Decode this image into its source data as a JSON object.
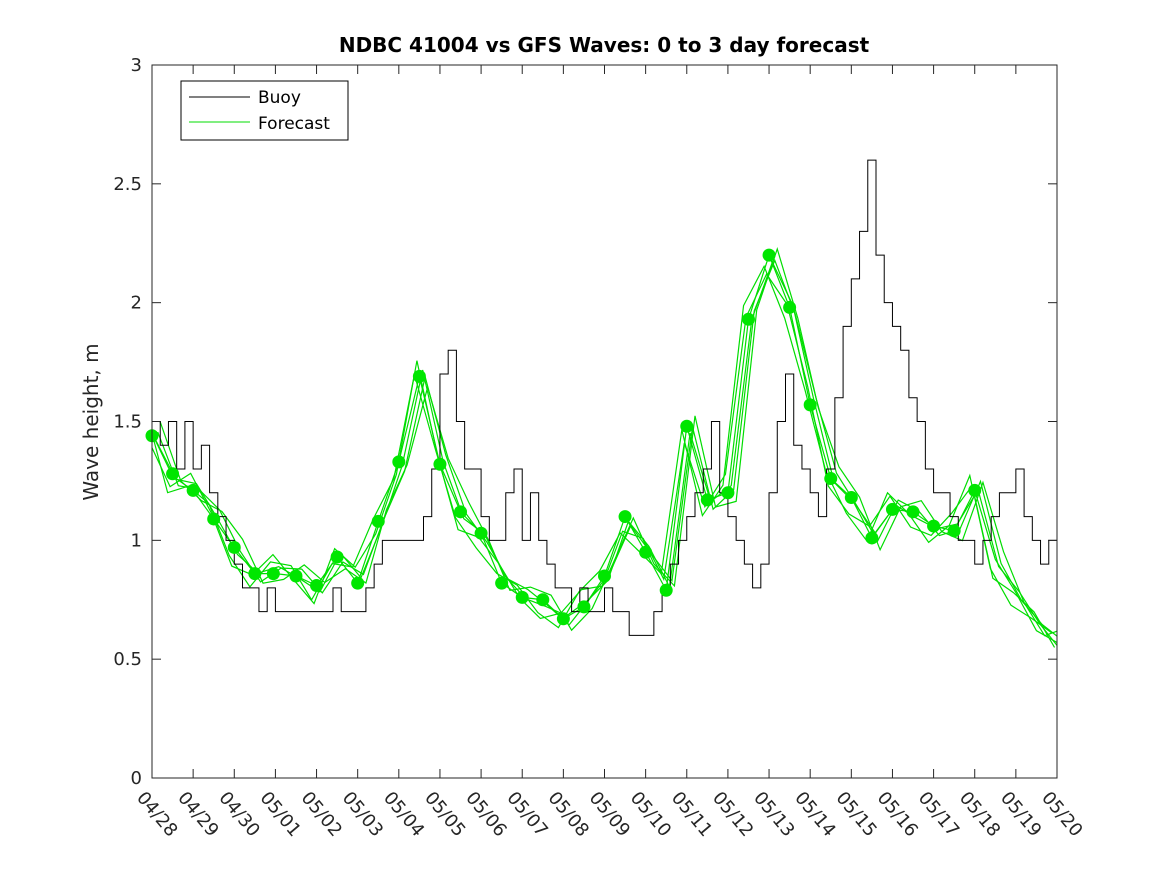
{
  "chart_data": {
    "type": "line",
    "title": "NDBC 41004 vs GFS Waves: 0 to 3 day forecast",
    "xlabel": "",
    "ylabel": "Wave height, m",
    "xlim": [
      "04/28",
      "05/20"
    ],
    "ylim": [
      0,
      3
    ],
    "x_tick_labels": [
      "04/28",
      "04/29",
      "04/30",
      "05/01",
      "05/02",
      "05/03",
      "05/04",
      "05/05",
      "05/06",
      "05/07",
      "05/08",
      "05/09",
      "05/10",
      "05/11",
      "05/12",
      "05/13",
      "05/14",
      "05/15",
      "05/16",
      "05/17",
      "05/18",
      "05/19",
      "05/20"
    ],
    "y_tick_labels": [
      "0",
      "0.5",
      "1",
      "1.5",
      "2",
      "2.5",
      "3"
    ],
    "grid": false,
    "legend_position": "top-left",
    "colors": {
      "buoy": "#000000",
      "forecast": "#00dd00",
      "marker": "#00e600"
    },
    "series": [
      {
        "name": "Buoy",
        "x_day_offsets": [
          0,
          0.2,
          0.4,
          0.6,
          0.8,
          1.0,
          1.2,
          1.4,
          1.6,
          1.8,
          2.0,
          2.2,
          2.4,
          2.6,
          2.8,
          3.0,
          3.2,
          3.4,
          3.6,
          3.8,
          4.0,
          4.2,
          4.4,
          4.6,
          4.8,
          5.0,
          5.2,
          5.4,
          5.6,
          5.8,
          6.0,
          6.2,
          6.4,
          6.6,
          6.8,
          7.0,
          7.2,
          7.4,
          7.6,
          7.8,
          8.0,
          8.2,
          8.4,
          8.6,
          8.8,
          9.0,
          9.2,
          9.4,
          9.6,
          9.8,
          10.0,
          10.2,
          10.4,
          10.6,
          10.8,
          11.0,
          11.2,
          11.4,
          11.6,
          11.8,
          12.0,
          12.2,
          12.4,
          12.6,
          12.8,
          13.0,
          13.2,
          13.4,
          13.6,
          13.8,
          14.0,
          14.2,
          14.4,
          14.6,
          14.8,
          15.0,
          15.2,
          15.4,
          15.6,
          15.8,
          16.0,
          16.2,
          16.4,
          16.6,
          16.8,
          17.0,
          17.2,
          17.4,
          17.6,
          17.8,
          18.0,
          18.2,
          18.4,
          18.6,
          18.8,
          19.0,
          19.2,
          19.4,
          19.6,
          19.8,
          20.0,
          20.2,
          20.4,
          20.6,
          20.8,
          21.0,
          21.2,
          21.4,
          21.6,
          21.8
        ],
        "values": [
          1.5,
          1.4,
          1.5,
          1.3,
          1.5,
          1.3,
          1.4,
          1.2,
          1.1,
          1.0,
          0.9,
          0.8,
          0.8,
          0.7,
          0.8,
          0.7,
          0.7,
          0.7,
          0.7,
          0.7,
          0.7,
          0.7,
          0.8,
          0.7,
          0.7,
          0.7,
          0.8,
          0.9,
          1.0,
          1.0,
          1.0,
          1.0,
          1.0,
          1.1,
          1.3,
          1.7,
          1.8,
          1.5,
          1.3,
          1.3,
          1.1,
          1.0,
          1.0,
          1.2,
          1.3,
          1.0,
          1.2,
          1.0,
          0.9,
          0.8,
          0.8,
          0.7,
          0.8,
          0.7,
          0.7,
          0.8,
          0.7,
          0.7,
          0.6,
          0.6,
          0.6,
          0.7,
          0.8,
          0.9,
          1.0,
          1.1,
          1.2,
          1.3,
          1.5,
          1.2,
          1.1,
          1.0,
          0.9,
          0.8,
          0.9,
          1.2,
          1.5,
          1.7,
          1.4,
          1.3,
          1.2,
          1.1,
          1.3,
          1.6,
          1.9,
          2.1,
          2.3,
          2.6,
          2.2,
          2.0,
          1.9,
          1.8,
          1.6,
          1.5,
          1.3,
          1.2,
          1.2,
          1.1,
          1.0,
          1.0,
          0.9,
          1.0,
          1.1,
          1.2,
          1.2,
          1.3,
          1.1,
          1.0,
          0.9,
          1.0
        ]
      },
      {
        "name": "Forecast",
        "x_day_offsets": [
          0,
          0.5,
          1.0,
          1.5,
          2.0,
          2.5,
          3.0,
          3.5,
          4.0,
          4.5,
          5.0,
          5.5,
          6.0,
          6.5,
          7.0,
          7.5,
          8.0,
          8.5,
          9.0,
          9.5,
          10.0,
          10.5,
          11.0,
          11.5,
          12.0,
          12.5,
          13.0,
          13.5,
          14.0,
          14.5,
          15.0,
          15.5,
          16.0,
          16.5,
          17.0,
          17.5,
          18.0,
          18.5,
          19.0,
          19.5,
          20.0,
          20.5,
          21.0,
          21.5,
          22.0
        ],
        "values": [
          1.45,
          1.27,
          1.21,
          1.09,
          0.97,
          0.86,
          0.86,
          0.85,
          0.81,
          0.93,
          0.82,
          1.08,
          1.33,
          1.69,
          1.32,
          1.12,
          1.03,
          0.82,
          0.76,
          0.75,
          0.67,
          0.72,
          0.85,
          1.1,
          0.95,
          0.79,
          1.48,
          1.17,
          1.2,
          1.93,
          2.2,
          1.98,
          1.57,
          1.26,
          1.18,
          1.01,
          1.13,
          1.12,
          1.06,
          1.04,
          1.21,
          0.92,
          0.78,
          0.62,
          0.57
        ]
      }
    ],
    "forecast_markers": {
      "x_day_offsets": [
        0,
        0.5,
        1.0,
        1.5,
        2.0,
        2.5,
        2.95,
        3.5,
        4.0,
        4.5,
        5.0,
        5.5,
        6.0,
        6.5,
        7.0,
        7.5,
        8.0,
        8.5,
        9.0,
        9.5,
        10.0,
        10.5,
        11.0,
        11.5,
        12.0,
        12.5,
        13.0,
        13.5,
        14.0,
        14.5,
        15.0,
        15.5,
        16.0,
        16.5,
        17.0,
        17.5,
        18.0,
        18.5,
        19.0,
        19.5,
        20.0
      ],
      "values": [
        1.44,
        1.28,
        1.21,
        1.09,
        0.97,
        0.86,
        0.86,
        0.85,
        0.81,
        0.93,
        0.82,
        1.08,
        1.33,
        1.69,
        1.32,
        1.12,
        1.03,
        0.82,
        0.76,
        0.75,
        0.67,
        0.72,
        0.85,
        1.1,
        0.95,
        0.79,
        1.48,
        1.17,
        1.2,
        1.93,
        2.2,
        1.98,
        1.57,
        1.26,
        1.18,
        1.01,
        1.13,
        1.12,
        1.06,
        1.04,
        1.21
      ]
    }
  }
}
